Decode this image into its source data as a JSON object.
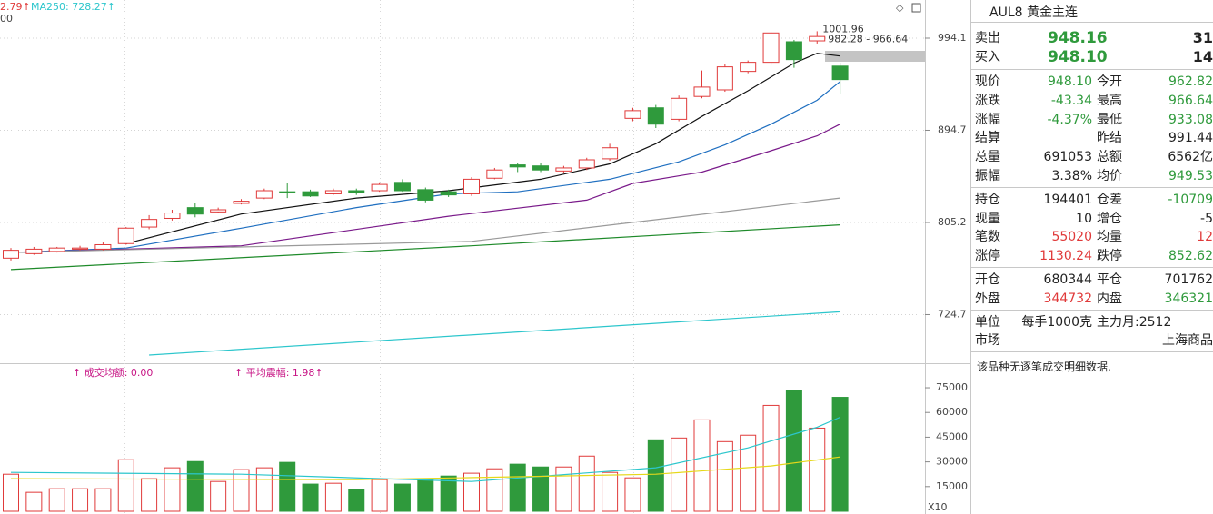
{
  "header": {
    "ma_left": "2.79↑",
    "ma250": "MA250: 728.27↑",
    "second_line": "00",
    "volume_avg": "↑ 成交均额: 0.00",
    "avg_amplitude": "↑ 平均震幅: 1.98↑"
  },
  "chart_data": [
    {
      "type": "candlestick",
      "yscale": "log",
      "ylim": [
        689.1,
        1038.4
      ],
      "yticks": [
        994.1,
        894.7,
        805.2,
        724.7
      ],
      "grid": true,
      "up_color": "#e03a3a",
      "down_color": "#2f9a3c",
      "open": [
        773,
        777,
        779,
        781,
        781,
        786,
        801,
        809,
        819,
        815,
        823,
        828,
        834,
        834,
        832,
        835,
        835,
        843,
        836,
        834,
        832,
        847,
        860,
        859,
        854,
        857,
        866,
        907,
        918,
        906,
        930,
        937,
        957,
        967,
        990,
        991,
        962.82
      ],
      "close": [
        780,
        781,
        782,
        782,
        785,
        800,
        808,
        814,
        813,
        817,
        825,
        835,
        833,
        830,
        835,
        833,
        841,
        835,
        826,
        831,
        846,
        855,
        858,
        855,
        857,
        865,
        877,
        915,
        901,
        928,
        940,
        962,
        967,
        1000,
        970,
        996,
        948.1
      ],
      "high": [
        782,
        783,
        783,
        784,
        787,
        801,
        812,
        817,
        823,
        819,
        827,
        837,
        842,
        836,
        837,
        837,
        843,
        846,
        838,
        836,
        848,
        857,
        862,
        862,
        859,
        867,
        881,
        918,
        921,
        931,
        958,
        965,
        969,
        1001,
        992,
        1001.96,
        966.64
      ],
      "low": [
        771,
        776,
        778,
        780,
        780,
        785,
        799,
        807,
        810,
        814,
        822,
        827,
        828,
        829,
        831,
        831,
        834,
        834,
        824,
        829,
        830,
        846,
        853,
        853,
        852,
        855,
        864,
        904,
        897,
        904,
        928,
        935,
        955,
        964,
        961,
        988,
        933.08
      ],
      "annotations": [
        "1001.96",
        "982.28 - 966.64"
      ],
      "lines": [
        {
          "color": "#111111",
          "x": [
            5,
            10,
            15,
            19,
            23,
            26,
            28,
            30,
            32,
            34,
            35,
            36
          ],
          "values": [
            786,
            813,
            828,
            835,
            846,
            861,
            881,
            909,
            936,
            966,
            977,
            974
          ]
        },
        {
          "color": "#1f6fc0",
          "x": [
            0,
            5,
            10,
            15,
            19,
            22,
            26,
            29,
            31,
            33,
            35,
            36
          ],
          "values": [
            778,
            782,
            800,
            819,
            832,
            834,
            846,
            863,
            880,
            901,
            926,
            946
          ]
        },
        {
          "color": "#7a1a8a",
          "x": [
            0,
            10,
            19,
            25,
            27,
            30,
            33,
            35,
            36
          ],
          "values": [
            778,
            784,
            811,
            826,
            842,
            853,
            874,
            889,
            901
          ]
        },
        {
          "color": "#9a9a9a",
          "x": [
            0,
            20,
            36
          ],
          "values": [
            778,
            788,
            828
          ]
        },
        {
          "color": "#1e8a2a",
          "x": [
            0,
            20,
            36
          ],
          "values": [
            763,
            784,
            803
          ]
        },
        {
          "color": "#2cc6cc",
          "x": [
            6,
            36
          ],
          "values": [
            692,
            727
          ]
        }
      ]
    },
    {
      "type": "bar",
      "ylim": [
        0,
        87700
      ],
      "yticks": [
        75000,
        60000,
        45000,
        30000,
        15000
      ],
      "scale_label": "X10",
      "values": [
        22500,
        11500,
        13700,
        13700,
        13700,
        31300,
        19800,
        26400,
        30200,
        18100,
        25300,
        26400,
        29700,
        16500,
        17000,
        13200,
        19200,
        16500,
        19200,
        21400,
        23100,
        25800,
        28600,
        26900,
        26900,
        33500,
        23600,
        20300,
        43400,
        44500,
        55500,
        42300,
        46200,
        64300,
        73100,
        50500,
        69200
      ],
      "lines": [
        {
          "color": "#2cc6cc",
          "x": [
            0,
            10,
            20,
            28,
            32,
            35,
            36
          ],
          "values": [
            23600,
            22500,
            18100,
            26400,
            38500,
            51100,
            57100
          ]
        },
        {
          "color": "#e6d81a",
          "x": [
            0,
            15,
            28,
            33,
            36
          ],
          "values": [
            19800,
            19200,
            22500,
            27500,
            33000
          ]
        }
      ]
    }
  ],
  "quote": {
    "title": "AUL8 黄金主连",
    "book": [
      {
        "label": "卖出",
        "price": "948.16",
        "qty": "31",
        "color": "#2f9a3c"
      },
      {
        "label": "买入",
        "price": "948.10",
        "qty": "14",
        "color": "#2f9a3c"
      }
    ],
    "sections": [
      [
        {
          "label": "现价",
          "value": "948.10",
          "color": "#2f9a3c",
          "label2": "今开",
          "value2": "962.82",
          "color2": "#2f9a3c"
        },
        {
          "label": "涨跌",
          "value": "-43.34",
          "color": "#2f9a3c",
          "label2": "最高",
          "value2": "966.64",
          "color2": "#2f9a3c"
        },
        {
          "label": "涨幅",
          "value": "-4.37%",
          "color": "#2f9a3c",
          "label2": "最低",
          "value2": "933.08",
          "color2": "#2f9a3c"
        },
        {
          "label": "结算",
          "label2": "昨结",
          "value2": "991.44",
          "color2": "#222222"
        },
        {
          "label": "总量",
          "value": "691053",
          "color": "#222222",
          "label2": "总额",
          "value2": "6562亿",
          "color2": "#222222"
        },
        {
          "label": "振幅",
          "value": "3.38%",
          "color": "#222222",
          "label2": "均价",
          "value2": "949.53",
          "color2": "#2f9a3c"
        }
      ],
      [
        {
          "label": "持仓",
          "value": "194401",
          "color": "#222222",
          "label2": "仓差",
          "value2": "-10709",
          "color2": "#2f9a3c"
        },
        {
          "label": "现量",
          "value": "10",
          "color": "#222222",
          "label2": "增仓",
          "value2": "-5",
          "color2": "#222222"
        },
        {
          "label": "笔数",
          "value": "55020",
          "color": "#e03a3a",
          "label2": "均量",
          "value2": "12",
          "color2": "#e03a3a"
        },
        {
          "label": "涨停",
          "value": "1130.24",
          "color": "#e03a3a",
          "label2": "跌停",
          "value2": "852.62",
          "color2": "#2f9a3c"
        }
      ],
      [
        {
          "label": "开仓",
          "value": "680344",
          "color": "#222222",
          "label2": "平仓",
          "value2": "701762",
          "color2": "#222222"
        },
        {
          "label": "外盘",
          "value": "344732",
          "color": "#e03a3a",
          "label2": "内盘",
          "value2": "346321",
          "color2": "#2f9a3c"
        }
      ],
      [
        {
          "label": "单位",
          "value": "每手1000克",
          "color": "#222222",
          "label2": "主力月:2512",
          "color2": "#222222"
        },
        {
          "label": "市场",
          "value2": "上海商品",
          "color2": "#222222"
        }
      ]
    ],
    "note": "该品种无逐笔成交明细数据."
  }
}
